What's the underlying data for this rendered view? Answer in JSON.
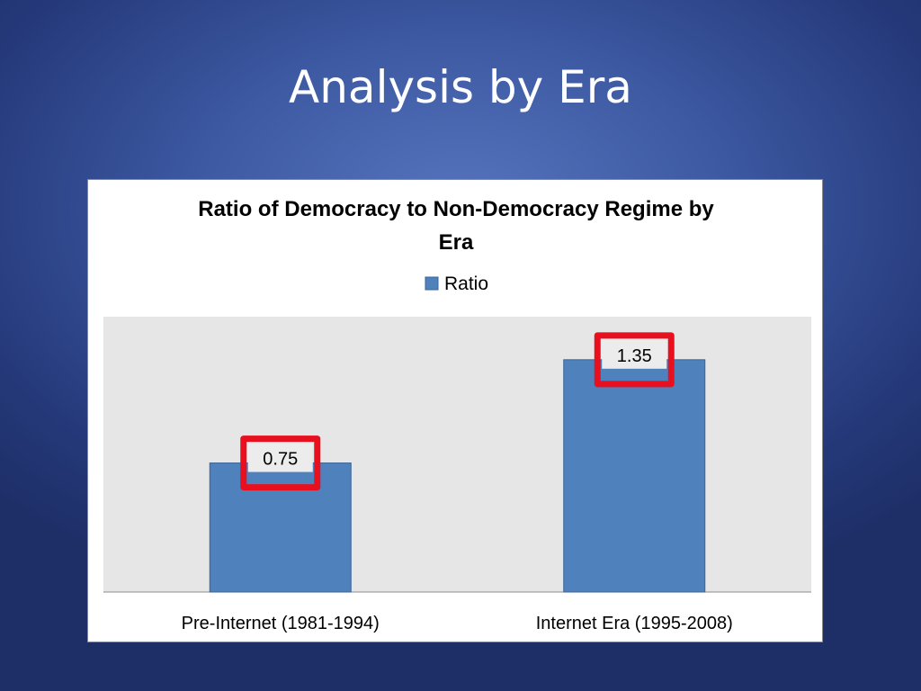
{
  "slide": {
    "title": "Analysis by Era"
  },
  "chart_data": {
    "type": "bar",
    "title_lines": [
      "Ratio of Democracy to Non-Democracy Regime by",
      "Era"
    ],
    "categories": [
      "Pre-Internet (1981-1994)",
      "Internet Era (1995-2008)"
    ],
    "series": [
      {
        "name": "Ratio",
        "values": [
          0.75,
          1.35
        ],
        "labels": [
          "0.75",
          "1.35"
        ]
      }
    ],
    "xlabel": "",
    "ylabel": "",
    "ylim": [
      0,
      1.6
    ],
    "grid": false,
    "legend": "top",
    "highlighted_labels": true
  },
  "colors": {
    "bar_fill": "#4f81bd",
    "bar_stroke": "#3a6497",
    "plot_bg": "#e6e6e6",
    "highlight": "#e8101e",
    "text": "#000000"
  }
}
